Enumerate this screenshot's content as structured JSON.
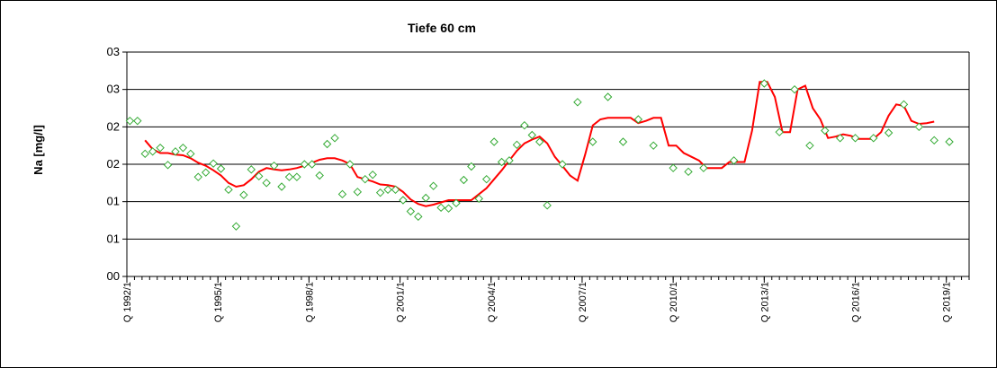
{
  "chart_data": {
    "type": "line",
    "title": "Tiefe  60 cm",
    "ylabel": "Na [mg/l]",
    "xlabel": "",
    "ytick_labels": [
      "00",
      "01",
      "01",
      "02",
      "02",
      "03",
      "03"
    ],
    "ylim": [
      0,
      3
    ],
    "xlim": [
      1992.0,
      2019.75
    ],
    "xtick_labels": [
      "Q 1992/1",
      "Q 1995/1",
      "Q 1998/1",
      "Q 2001/1",
      "Q 2004/1",
      "Q 2007/1",
      "Q 2010/1",
      "Q 2013/1",
      "Q 2016/1",
      "Q 2019/1"
    ],
    "xtick_values": [
      1992,
      1995,
      1998,
      2001,
      2004,
      2007,
      2010,
      2013,
      2016,
      2019
    ],
    "grid": true,
    "colors": {
      "line": "#ff0000",
      "markers": "#33aa33",
      "grid": "#000000"
    },
    "series": [
      {
        "kind": "scatter",
        "marker": "diamond",
        "x": [
          1992.1,
          1992.35,
          1992.6,
          1992.85,
          1993.1,
          1993.35,
          1993.6,
          1993.85,
          1994.1,
          1994.35,
          1994.6,
          1994.85,
          1995.1,
          1995.35,
          1995.6,
          1995.85,
          1996.1,
          1996.35,
          1996.6,
          1996.85,
          1997.1,
          1997.35,
          1997.6,
          1997.85,
          1998.1,
          1998.35,
          1998.6,
          1998.85,
          1999.1,
          1999.35,
          1999.6,
          1999.85,
          2000.1,
          2000.35,
          2000.6,
          2000.85,
          2001.1,
          2001.35,
          2001.6,
          2001.85,
          2002.1,
          2002.35,
          2002.6,
          2002.85,
          2003.1,
          2003.35,
          2003.6,
          2003.85,
          2004.1,
          2004.35,
          2004.6,
          2004.85,
          2005.1,
          2005.35,
          2005.6,
          2005.85,
          2006.35,
          2006.85,
          2007.35,
          2007.85,
          2008.35,
          2008.85,
          2009.35,
          2010.0,
          2010.5,
          2011.0,
          2012.0,
          2013.0,
          2013.5,
          2014.0,
          2014.5,
          2015.0,
          2015.5,
          2016.0,
          2016.6,
          2017.1,
          2017.6,
          2018.1,
          2018.6,
          2019.1
        ],
        "y": [
          2.08,
          2.08,
          1.64,
          1.67,
          1.72,
          1.49,
          1.67,
          1.72,
          1.64,
          1.33,
          1.39,
          1.51,
          1.44,
          1.16,
          0.67,
          1.09,
          1.43,
          1.34,
          1.25,
          1.48,
          1.2,
          1.33,
          1.33,
          1.5,
          1.5,
          1.35,
          1.77,
          1.85,
          1.1,
          1.5,
          1.13,
          1.3,
          1.36,
          1.12,
          1.16,
          1.16,
          1.02,
          0.87,
          0.8,
          1.05,
          1.21,
          0.92,
          0.91,
          0.98,
          1.29,
          1.47,
          1.04,
          1.3,
          1.8,
          1.53,
          1.55,
          1.76,
          2.02,
          1.89,
          1.8,
          0.95,
          1.5,
          2.33,
          1.8,
          2.4,
          1.8,
          2.1,
          1.75,
          1.45,
          1.4,
          1.45,
          1.55,
          2.58,
          1.93,
          2.5,
          1.75,
          1.95,
          1.85,
          1.85,
          1.85,
          1.92,
          2.3,
          2.0,
          1.82,
          1.8
        ]
      },
      {
        "kind": "line",
        "x": [
          1992.6,
          1992.85,
          1993.1,
          1993.35,
          1993.6,
          1993.85,
          1994.1,
          1994.35,
          1994.6,
          1994.85,
          1995.1,
          1995.35,
          1995.6,
          1995.85,
          1996.1,
          1996.35,
          1996.6,
          1996.85,
          1997.1,
          1997.35,
          1997.6,
          1997.85,
          1998.1,
          1998.35,
          1998.6,
          1998.85,
          1999.1,
          1999.35,
          1999.6,
          1999.85,
          2000.1,
          2000.35,
          2000.6,
          2000.85,
          2001.1,
          2001.35,
          2001.6,
          2001.85,
          2002.1,
          2002.35,
          2002.6,
          2002.85,
          2003.1,
          2003.35,
          2003.6,
          2003.85,
          2004.1,
          2004.35,
          2004.6,
          2004.85,
          2005.1,
          2005.35,
          2005.6,
          2005.85,
          2006.1,
          2006.35,
          2006.6,
          2006.85,
          2007.1,
          2007.35,
          2007.6,
          2007.85,
          2008.1,
          2008.35,
          2008.6,
          2008.85,
          2009.1,
          2009.35,
          2009.6,
          2009.85,
          2010.1,
          2010.35,
          2010.6,
          2010.85,
          2011.1,
          2011.35,
          2011.6,
          2011.85,
          2012.1,
          2012.35,
          2012.6,
          2012.85,
          2013.1,
          2013.35,
          2013.6,
          2013.85,
          2014.1,
          2014.35,
          2014.6,
          2014.85,
          2015.1,
          2015.35,
          2015.6,
          2015.85,
          2016.1,
          2016.35,
          2016.6,
          2016.85,
          2017.1,
          2017.35,
          2017.6,
          2017.85,
          2018.1,
          2018.35,
          2018.6
        ],
        "y": [
          1.82,
          1.7,
          1.65,
          1.65,
          1.63,
          1.62,
          1.58,
          1.52,
          1.48,
          1.42,
          1.35,
          1.25,
          1.2,
          1.22,
          1.3,
          1.4,
          1.45,
          1.43,
          1.42,
          1.43,
          1.45,
          1.48,
          1.52,
          1.56,
          1.58,
          1.58,
          1.55,
          1.5,
          1.33,
          1.3,
          1.27,
          1.23,
          1.22,
          1.2,
          1.13,
          1.03,
          0.97,
          0.94,
          0.96,
          0.99,
          1.02,
          1.02,
          1.02,
          1.02,
          1.1,
          1.18,
          1.3,
          1.42,
          1.55,
          1.68,
          1.78,
          1.83,
          1.87,
          1.78,
          1.6,
          1.48,
          1.35,
          1.28,
          1.63,
          2.02,
          2.1,
          2.12,
          2.12,
          2.12,
          2.12,
          2.05,
          2.08,
          2.12,
          2.12,
          1.75,
          1.75,
          1.65,
          1.6,
          1.55,
          1.45,
          1.45,
          1.45,
          1.53,
          1.53,
          1.53,
          1.95,
          2.6,
          2.6,
          2.4,
          1.93,
          1.93,
          2.5,
          2.55,
          2.25,
          2.1,
          1.85,
          1.87,
          1.9,
          1.88,
          1.84,
          1.84,
          1.84,
          1.93,
          2.15,
          2.3,
          2.28,
          2.08,
          2.04,
          2.05,
          2.07
        ]
      }
    ]
  }
}
